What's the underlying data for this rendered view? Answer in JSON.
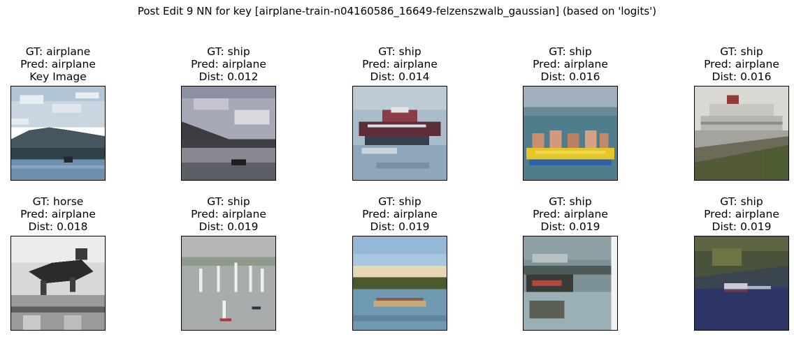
{
  "figure": {
    "title": "Post Edit 9 NN for key [airplane-train-n04160586_16649-felzenszwalb_gaussian] (based on 'logits')"
  },
  "panels": [
    {
      "gt": "GT: airplane",
      "pred": "Pred: airplane",
      "extra": "Key Image",
      "scene": "lake-hills"
    },
    {
      "gt": "GT: ship",
      "pred": "Pred: airplane",
      "extra": "Dist: 0.012",
      "scene": "dusk-lake"
    },
    {
      "gt": "GT: ship",
      "pred": "Pred: airplane",
      "extra": "Dist: 0.014",
      "scene": "red-boat"
    },
    {
      "gt": "GT: ship",
      "pred": "Pred: airplane",
      "extra": "Dist: 0.016",
      "scene": "yellow-raft"
    },
    {
      "gt": "GT: ship",
      "pred": "Pred: airplane",
      "extra": "Dist: 0.016",
      "scene": "cruise-ship"
    },
    {
      "gt": "GT: horse",
      "pred": "Pred: airplane",
      "extra": "Dist: 0.018",
      "scene": "horse-jump"
    },
    {
      "gt": "GT: ship",
      "pred": "Pred: airplane",
      "extra": "Dist: 0.019",
      "scene": "sailboats"
    },
    {
      "gt": "GT: ship",
      "pred": "Pred: airplane",
      "extra": "Dist: 0.019",
      "scene": "rowing"
    },
    {
      "gt": "GT: ship",
      "pred": "Pred: airplane",
      "extra": "Dist: 0.019",
      "scene": "harbor"
    },
    {
      "gt": "GT: ship",
      "pred": "Pred: airplane",
      "extra": "Dist: 0.019",
      "scene": "speedboat"
    }
  ]
}
